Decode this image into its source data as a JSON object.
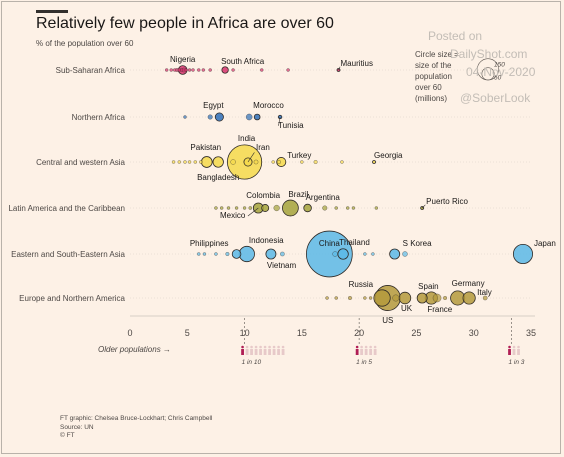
{
  "header": {
    "title": "Relatively few people in Africa are over 60",
    "subtitle": "% of the population over 60"
  },
  "legend": {
    "text_lines": [
      "Circle size =",
      "size of the",
      "population",
      "over 60",
      "(millions)"
    ],
    "reference_values": [
      "150",
      "50"
    ],
    "reference_sizes": [
      150,
      50
    ]
  },
  "watermark": {
    "lines": [
      "Posted on",
      "DailyShot.com",
      "04-Nov-2020",
      "@SoberLook"
    ]
  },
  "source": {
    "lines": [
      "FT graphic: Chelsea Bruce-Lockhart; Chris Campbell",
      "Source: UN",
      "© FT"
    ]
  },
  "older_populations": {
    "label": "Older populations →",
    "markers": [
      {
        "x": 10,
        "label": "1 in 10",
        "of": 10
      },
      {
        "x": 20,
        "label": "1 in 5",
        "of": 5
      },
      {
        "x": 33.3,
        "label": "1 in 3",
        "of": 3
      }
    ]
  },
  "chart_data": {
    "type": "scatter",
    "title": "Relatively few people in Africa are over 60",
    "subtitle": "% of the population over 60",
    "xlim": [
      0,
      36
    ],
    "x_ticks": [
      0,
      5,
      10,
      15,
      20,
      25,
      30,
      35
    ],
    "grid": false,
    "size_encoding": "population over 60 (millions)",
    "colors": {
      "Sub-Saharan Africa": "#d6336c",
      "Northern Africa": "#2e6fb7",
      "Central and western Asia": "#f5d94a",
      "Latin America and the Caribbean": "#a4a33b",
      "Eastern and South-Eastern Asia": "#5bb9e6",
      "Europe and Northern America": "#b49a3c"
    },
    "series": [
      {
        "name": "Sub-Saharan Africa",
        "points": [
          {
            "x": 3.2,
            "size": 0.5
          },
          {
            "x": 3.6,
            "size": 0.6
          },
          {
            "x": 3.9,
            "size": 1
          },
          {
            "x": 4.1,
            "size": 1.5
          },
          {
            "x": 4.3,
            "size": 1.2
          },
          {
            "x": 4.5,
            "size": 0.8
          },
          {
            "x": 4.7,
            "size": 2
          },
          {
            "x": 4.9,
            "size": 0.7
          },
          {
            "x": 5.2,
            "size": 1
          },
          {
            "x": 5.5,
            "size": 0.5
          },
          {
            "x": 6.0,
            "size": 0.6
          },
          {
            "x": 6.4,
            "size": 0.4
          },
          {
            "x": 7.0,
            "size": 0.3
          },
          {
            "x": 4.6,
            "label": "Nigeria",
            "size": 9
          },
          {
            "x": 8.3,
            "label": "South Africa",
            "size": 5
          },
          {
            "x": 9.0,
            "size": 0.4
          },
          {
            "x": 11.5,
            "size": 0.2
          },
          {
            "x": 13.8,
            "size": 0.2
          },
          {
            "x": 18.2,
            "label": "Mauritius",
            "size": 0.3
          }
        ]
      },
      {
        "name": "Northern Africa",
        "points": [
          {
            "x": 4.8,
            "size": 1
          },
          {
            "x": 7.0,
            "size": 2.5
          },
          {
            "x": 7.8,
            "label": "Egypt",
            "size": 8
          },
          {
            "x": 10.4,
            "size": 4.5
          },
          {
            "x": 11.1,
            "label": "Morocco",
            "size": 4
          },
          {
            "x": 13.1,
            "label": "Tunisia",
            "size": 1.5
          }
        ]
      },
      {
        "name": "Central and western Asia",
        "points": [
          {
            "x": 3.8,
            "size": 0.5
          },
          {
            "x": 4.3,
            "size": 0.7
          },
          {
            "x": 4.8,
            "size": 1
          },
          {
            "x": 5.2,
            "size": 0.8
          },
          {
            "x": 5.7,
            "size": 0.6
          },
          {
            "x": 6.2,
            "size": 1.3
          },
          {
            "x": 7.7,
            "label": "Bangladesh",
            "size": 13
          },
          {
            "x": 6.7,
            "label": "Pakistan",
            "size": 14
          },
          {
            "x": 9.0,
            "size": 3
          },
          {
            "x": 11.0,
            "size": 2
          },
          {
            "x": 10.0,
            "label": "India",
            "size": 140
          },
          {
            "x": 10.3,
            "label": "Iran",
            "size": 8
          },
          {
            "x": 12.5,
            "size": 1
          },
          {
            "x": 13.0,
            "size": 1.5
          },
          {
            "x": 13.2,
            "label": "Turkey",
            "size": 10
          },
          {
            "x": 15.0,
            "size": 0.8
          },
          {
            "x": 16.2,
            "size": 1.5
          },
          {
            "x": 18.5,
            "size": 0.5
          },
          {
            "x": 21.3,
            "label": "Georgia",
            "size": 0.8
          }
        ]
      },
      {
        "name": "Latin America and the Caribbean",
        "points": [
          {
            "x": 7.5,
            "size": 0.6
          },
          {
            "x": 8.0,
            "size": 0.5
          },
          {
            "x": 8.6,
            "size": 0.8
          },
          {
            "x": 9.3,
            "size": 1
          },
          {
            "x": 10.0,
            "size": 0.7
          },
          {
            "x": 10.5,
            "size": 1.2
          },
          {
            "x": 11.2,
            "label": "Mexico",
            "size": 12
          },
          {
            "x": 11.8,
            "label": "Colombia",
            "size": 6
          },
          {
            "x": 12.8,
            "size": 4
          },
          {
            "x": 14.0,
            "label": "Brazil",
            "size": 30
          },
          {
            "x": 15.5,
            "label": "Argentina",
            "size": 7
          },
          {
            "x": 17.0,
            "size": 2.5
          },
          {
            "x": 18.0,
            "size": 0.8
          },
          {
            "x": 19.0,
            "size": 0.4
          },
          {
            "x": 19.5,
            "size": 0.3
          },
          {
            "x": 21.5,
            "size": 0.8
          },
          {
            "x": 25.5,
            "label": "Puerto Rico",
            "size": 0.7
          }
        ]
      },
      {
        "name": "Eastern and South-Eastern Asia",
        "points": [
          {
            "x": 6.0,
            "size": 1
          },
          {
            "x": 6.5,
            "size": 0.6
          },
          {
            "x": 7.5,
            "size": 0.8
          },
          {
            "x": 8.5,
            "size": 1.5
          },
          {
            "x": 9.3,
            "label": "Philippines",
            "size": 9
          },
          {
            "x": 10.2,
            "label": "Indonesia",
            "size": 28
          },
          {
            "x": 12.3,
            "label": "Vietnam",
            "size": 12
          },
          {
            "x": 13.3,
            "size": 2
          },
          {
            "x": 17.4,
            "label": "China",
            "size": 250
          },
          {
            "x": 17.9,
            "size": 3
          },
          {
            "x": 18.6,
            "label": "Thailand",
            "size": 13
          },
          {
            "x": 20.5,
            "size": 0.5
          },
          {
            "x": 21.2,
            "size": 0.8
          },
          {
            "x": 23.1,
            "label": "S Korea",
            "size": 12
          },
          {
            "x": 24.0,
            "size": 3
          },
          {
            "x": 34.3,
            "label": "Japan",
            "size": 44
          }
        ]
      },
      {
        "name": "Europe and Northern America",
        "points": [
          {
            "x": 17.2,
            "size": 0.5
          },
          {
            "x": 18.0,
            "size": 0.8
          },
          {
            "x": 19.2,
            "size": 1.5
          },
          {
            "x": 22.0,
            "label": "Russia",
            "size": 32
          },
          {
            "x": 22.5,
            "label": "US",
            "size": 75
          },
          {
            "x": 23.2,
            "size": 5
          },
          {
            "x": 24.0,
            "label": "UK",
            "size": 16
          },
          {
            "x": 25.5,
            "label": "Spain",
            "size": 12
          },
          {
            "x": 26.3,
            "label": "France",
            "size": 18
          },
          {
            "x": 26.8,
            "size": 8
          },
          {
            "x": 28.6,
            "label": "Germany",
            "size": 24
          },
          {
            "x": 29.6,
            "label": "Italy",
            "size": 18
          },
          {
            "x": 31.0,
            "size": 2
          },
          {
            "x": 20.5,
            "size": 1
          },
          {
            "x": 21.0,
            "size": 0.8
          },
          {
            "x": 27.5,
            "size": 1.5
          }
        ]
      }
    ]
  }
}
